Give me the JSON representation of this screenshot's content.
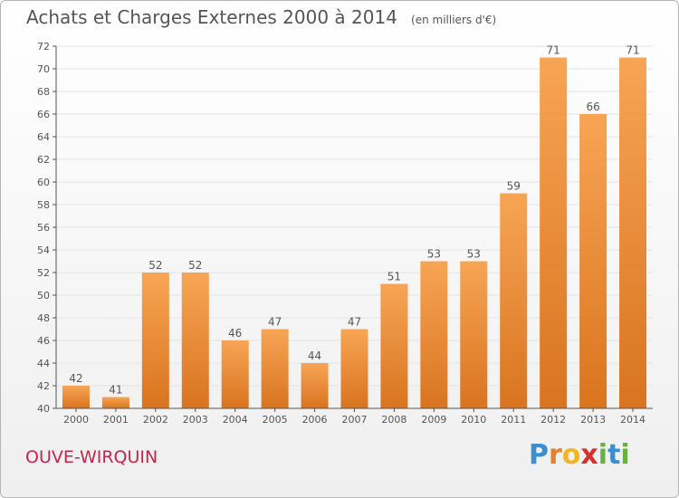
{
  "header": {
    "title": "Achats et Charges Externes 2000 à 2014",
    "unit": "(en milliers d'€)"
  },
  "footer": {
    "commune": "OUVE-WIRQUIN",
    "brand_letters": [
      "P",
      "r",
      "o",
      "x",
      "i",
      "t",
      "i"
    ],
    "brand_colors": [
      "#3a8fd1",
      "#e8802b",
      "#f2b623",
      "#d62f2f",
      "#6ab03c",
      "#3a8fd1",
      "#6ab03c"
    ]
  },
  "colors": {
    "bar_light": "#f7a555",
    "bar_dark": "#d9741f",
    "grid": "#e3e3e3",
    "axis": "#555555"
  },
  "chart_data": {
    "type": "bar",
    "title": "Achats et Charges Externes 2000 à 2014",
    "categories": [
      "2000",
      "2001",
      "2002",
      "2003",
      "2004",
      "2005",
      "2006",
      "2007",
      "2008",
      "2009",
      "2010",
      "2011",
      "2012",
      "2013",
      "2014"
    ],
    "values": [
      42,
      41,
      52,
      52,
      46,
      47,
      44,
      47,
      51,
      53,
      53,
      59,
      71,
      66,
      71
    ],
    "ylim": [
      40,
      72
    ],
    "yticks": [
      40,
      42,
      44,
      46,
      48,
      50,
      52,
      54,
      56,
      58,
      60,
      62,
      64,
      66,
      68,
      70,
      72
    ],
    "grid": true,
    "xlabel": "",
    "ylabel": ""
  }
}
